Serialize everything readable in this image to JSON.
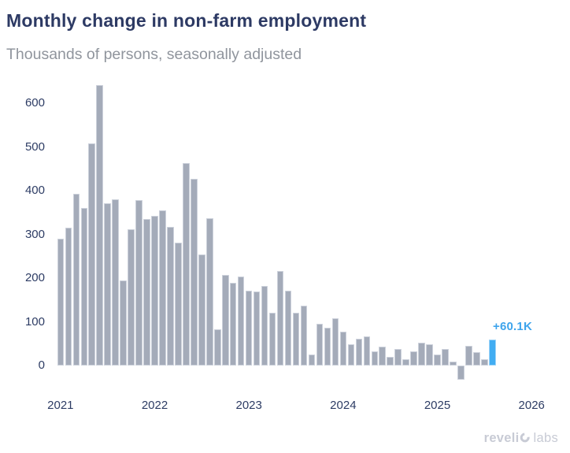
{
  "header": {
    "title": "Monthly change in non-farm employment",
    "subtitle": "Thousands of persons, seasonally adjusted"
  },
  "chart_data": {
    "type": "bar",
    "title": "Monthly change in non-farm employment",
    "subtitle": "Thousands of persons, seasonally adjusted",
    "unit": "thousands of persons",
    "x_axis": {
      "unit": "month",
      "tick_labels": [
        "2021",
        "2022",
        "2023",
        "2024",
        "2025",
        "2026"
      ],
      "tick_month_indices": [
        0,
        12,
        24,
        36,
        48,
        60
      ]
    },
    "y_axis": {
      "tick_labels": [
        "0",
        "100",
        "200",
        "300",
        "400",
        "500",
        "600"
      ],
      "tick_values": [
        0,
        100,
        200,
        300,
        400,
        500,
        600
      ],
      "range_shown": [
        -50,
        660
      ],
      "grid": false
    },
    "legend": false,
    "months": [
      "2021-01",
      "2021-02",
      "2021-03",
      "2021-04",
      "2021-05",
      "2021-06",
      "2021-07",
      "2021-08",
      "2021-09",
      "2021-10",
      "2021-11",
      "2021-12",
      "2022-01",
      "2022-02",
      "2022-03",
      "2022-04",
      "2022-05",
      "2022-06",
      "2022-07",
      "2022-08",
      "2022-09",
      "2022-10",
      "2022-11",
      "2022-12",
      "2023-01",
      "2023-02",
      "2023-03",
      "2023-04",
      "2023-05",
      "2023-06",
      "2023-07",
      "2023-08",
      "2023-09",
      "2023-10",
      "2023-11",
      "2023-12",
      "2024-01",
      "2024-02",
      "2024-03",
      "2024-04",
      "2024-05",
      "2024-06",
      "2024-07",
      "2024-08",
      "2024-09",
      "2024-10",
      "2024-11",
      "2024-12",
      "2025-01",
      "2025-02",
      "2025-03",
      "2025-04",
      "2025-05",
      "2025-06",
      "2025-07",
      "2025-08"
    ],
    "values": [
      290,
      316,
      393,
      360,
      509,
      642,
      371,
      381,
      195,
      313,
      379,
      336,
      343,
      355,
      318,
      282,
      463,
      427,
      254,
      337,
      83,
      208,
      190,
      204,
      172,
      170,
      183,
      120,
      216,
      172,
      120,
      137,
      26,
      96,
      87,
      109,
      77,
      49,
      62,
      66,
      32,
      44,
      19,
      38,
      14,
      32,
      53,
      48,
      25,
      37,
      9,
      -33,
      45,
      30,
      15,
      60.1
    ],
    "highlight": {
      "index": 55,
      "label": "+60.1K",
      "color": "#42adf2"
    },
    "colors": {
      "bar": "#a4abb9",
      "bar_border": "#ccd1db",
      "highlight_bar": "#42adf2",
      "highlight_border": "#9ed4f8",
      "annotation_text": "#3ea4ec",
      "title_text": "#2d3a64",
      "subtitle_text": "#90959d",
      "axis_text": "#2d3c64"
    }
  },
  "footer": {
    "brand": "revelio labs",
    "brand_fragment_1": "reveli",
    "brand_fragment_2": "labs",
    "o_icon": "revelio-o-icon"
  }
}
